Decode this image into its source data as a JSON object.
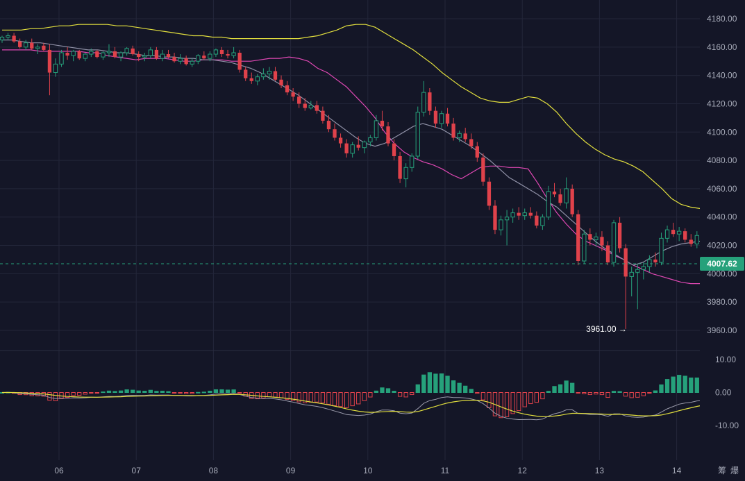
{
  "chart_data": {
    "type": "candlestick",
    "price_axis": {
      "ticks": [
        "4180.00",
        "4160.00",
        "4140.00",
        "4120.00",
        "4100.00",
        "4080.00",
        "4060.00",
        "4040.00",
        "4020.00",
        "4000.00",
        "3980.00",
        "3960.00"
      ],
      "ylim": [
        3955,
        4185
      ]
    },
    "current_price": {
      "label": "4007.62",
      "value": 4007.62,
      "color": "#26a17b"
    },
    "low_annotation": {
      "label": "3961.00 →",
      "value": 3961.0
    },
    "date_labels": [
      "06",
      "07",
      "08",
      "09",
      "10",
      "11",
      "12",
      "13",
      "14"
    ],
    "corner_labels": [
      "筹",
      "爆"
    ],
    "indicator_axis": {
      "ticks": [
        "10.00",
        "0.00",
        "-10.00"
      ],
      "ylim": [
        -20,
        12
      ]
    },
    "colors": {
      "up": "#26a17b",
      "down": "#e0424b",
      "ma_upper": "#e2df3e",
      "ma_lower": "#e048b4",
      "ma_mid": "#8f90a6",
      "signal": "#e2df3e",
      "macd": "#9a9aaa"
    },
    "candles_ohlc_per_day": 13,
    "candles": [
      [
        4165,
        4168,
        4163,
        4167
      ],
      [
        4167,
        4170,
        4165,
        4168
      ],
      [
        4168,
        4170,
        4163,
        4164
      ],
      [
        4164,
        4166,
        4159,
        4160
      ],
      [
        4160,
        4165,
        4158,
        4163
      ],
      [
        4163,
        4166,
        4158,
        4159
      ],
      [
        4159,
        4162,
        4155,
        4160
      ],
      [
        4161,
        4163,
        4157,
        4158
      ],
      [
        4158,
        4162,
        4126,
        4142
      ],
      [
        4142,
        4152,
        4139,
        4148
      ],
      [
        4148,
        4158,
        4146,
        4156
      ],
      [
        4156,
        4160,
        4151,
        4154
      ],
      [
        4154,
        4158,
        4150,
        4157
      ],
      [
        4157,
        4158,
        4151,
        4152
      ],
      [
        4152,
        4156,
        4150,
        4155
      ],
      [
        4155,
        4159,
        4153,
        4157
      ],
      [
        4157,
        4158,
        4152,
        4153
      ],
      [
        4153,
        4157,
        4151,
        4156
      ],
      [
        4156,
        4162,
        4153,
        4157
      ],
      [
        4157,
        4160,
        4152,
        4153
      ],
      [
        4153,
        4157,
        4150,
        4156
      ],
      [
        4156,
        4160,
        4154,
        4159
      ],
      [
        4159,
        4161,
        4154,
        4155
      ],
      [
        4155,
        4157,
        4150,
        4153
      ],
      [
        4153,
        4156,
        4150,
        4154
      ],
      [
        4154,
        4160,
        4152,
        4158
      ],
      [
        4158,
        4160,
        4151,
        4152
      ],
      [
        4152,
        4158,
        4150,
        4155
      ],
      [
        4155,
        4158,
        4152,
        4153
      ],
      [
        4153,
        4156,
        4149,
        4150
      ],
      [
        4150,
        4155,
        4148,
        4152
      ],
      [
        4152,
        4154,
        4147,
        4148
      ],
      [
        4148,
        4152,
        4146,
        4150
      ],
      [
        4150,
        4155,
        4148,
        4154
      ],
      [
        4154,
        4157,
        4151,
        4152
      ],
      [
        4152,
        4157,
        4150,
        4155
      ],
      [
        4155,
        4159,
        4153,
        4158
      ],
      [
        4158,
        4160,
        4153,
        4155
      ],
      [
        4155,
        4158,
        4152,
        4154
      ],
      [
        4154,
        4160,
        4152,
        4156
      ],
      [
        4156,
        4158,
        4142,
        4144
      ],
      [
        4144,
        4146,
        4136,
        4138
      ],
      [
        4138,
        4142,
        4134,
        4136
      ],
      [
        4136,
        4141,
        4133,
        4139
      ],
      [
        4139,
        4145,
        4137,
        4141
      ],
      [
        4141,
        4146,
        4137,
        4143
      ],
      [
        4143,
        4146,
        4136,
        4137
      ],
      [
        4137,
        4140,
        4131,
        4133
      ],
      [
        4133,
        4136,
        4126,
        4128
      ],
      [
        4128,
        4131,
        4122,
        4125
      ],
      [
        4125,
        4128,
        4117,
        4120
      ],
      [
        4120,
        4124,
        4115,
        4117
      ],
      [
        4117,
        4122,
        4116,
        4119
      ],
      [
        4119,
        4122,
        4113,
        4115
      ],
      [
        4115,
        4118,
        4106,
        4108
      ],
      [
        4108,
        4112,
        4100,
        4102
      ],
      [
        4102,
        4106,
        4094,
        4096
      ],
      [
        4096,
        4099,
        4089,
        4092
      ],
      [
        4092,
        4095,
        4082,
        4085
      ],
      [
        4085,
        4093,
        4082,
        4091
      ],
      [
        4091,
        4097,
        4087,
        4089
      ],
      [
        4089,
        4094,
        4085,
        4093
      ],
      [
        4093,
        4098,
        4090,
        4096
      ],
      [
        4096,
        4112,
        4094,
        4108
      ],
      [
        4108,
        4115,
        4101,
        4104
      ],
      [
        4104,
        4107,
        4090,
        4092
      ],
      [
        4092,
        4095,
        4080,
        4083
      ],
      [
        4083,
        4086,
        4064,
        4067
      ],
      [
        4067,
        4078,
        4061,
        4075
      ],
      [
        4075,
        4085,
        4072,
        4083
      ],
      [
        4083,
        4118,
        4081,
        4114
      ],
      [
        4114,
        4136,
        4111,
        4128
      ],
      [
        4128,
        4131,
        4112,
        4115
      ],
      [
        4115,
        4118,
        4103,
        4106
      ],
      [
        4106,
        4115,
        4103,
        4113
      ],
      [
        4113,
        4117,
        4104,
        4106
      ],
      [
        4106,
        4110,
        4094,
        4096
      ],
      [
        4096,
        4101,
        4093,
        4099
      ],
      [
        4099,
        4103,
        4093,
        4095
      ],
      [
        4095,
        4099,
        4088,
        4090
      ],
      [
        4090,
        4093,
        4079,
        4082
      ],
      [
        4082,
        4085,
        4062,
        4065
      ],
      [
        4065,
        4068,
        4045,
        4048
      ],
      [
        4048,
        4052,
        4028,
        4031
      ],
      [
        4031,
        4041,
        4027,
        4038
      ],
      [
        4038,
        4045,
        4020,
        4040
      ],
      [
        4040,
        4046,
        4036,
        4043
      ],
      [
        4043,
        4047,
        4038,
        4041
      ],
      [
        4041,
        4046,
        4038,
        4043
      ],
      [
        4043,
        4047,
        4039,
        4041
      ],
      [
        4041,
        4044,
        4032,
        4034
      ],
      [
        4034,
        4042,
        4031,
        4040
      ],
      [
        4040,
        4062,
        4038,
        4058
      ],
      [
        4058,
        4064,
        4054,
        4056
      ],
      [
        4056,
        4060,
        4048,
        4050
      ],
      [
        4050,
        4068,
        4046,
        4060
      ],
      [
        4060,
        4063,
        4040,
        4042
      ],
      [
        4042,
        4045,
        4006,
        4009
      ],
      [
        4009,
        4031,
        4007,
        4028
      ],
      [
        4028,
        4032,
        4020,
        4024
      ],
      [
        4024,
        4029,
        4019,
        4026
      ],
      [
        4026,
        4030,
        4016,
        4020
      ],
      [
        4020,
        4023,
        4006,
        4008
      ],
      [
        4008,
        4038,
        4005,
        4036
      ],
      [
        4036,
        4040,
        4015,
        4018
      ],
      [
        4018,
        4021,
        3961,
        3998
      ],
      [
        3998,
        4005,
        3984,
        4001
      ],
      [
        4001,
        4007,
        3975,
        4003
      ],
      [
        4003,
        4008,
        3996,
        4005
      ],
      [
        4005,
        4013,
        4001,
        4010
      ],
      [
        4010,
        4015,
        4005,
        4008
      ],
      [
        4008,
        4029,
        4006,
        4025
      ],
      [
        4025,
        4034,
        4022,
        4031
      ],
      [
        4031,
        4036,
        4026,
        4028
      ],
      [
        4028,
        4033,
        4023,
        4030
      ],
      [
        4030,
        4032,
        4022,
        4024
      ],
      [
        4024,
        4028,
        4019,
        4021
      ],
      [
        4021,
        4030,
        4018,
        4027
      ],
      [
        4027,
        4030,
        4018,
        4019
      ],
      [
        4019,
        4027,
        4016,
        4024
      ],
      [
        4024,
        4028,
        4016,
        4018
      ],
      [
        4018,
        4023,
        4010,
        4012
      ],
      [
        4012,
        4017,
        4003,
        4005
      ],
      [
        4005,
        4011,
        4001,
        4003
      ],
      [
        4003,
        4010,
        3997,
        4007.62
      ]
    ],
    "band_upper": [
      4172,
      4172,
      4172,
      4173,
      4173,
      4174,
      4175,
      4175,
      4176,
      4176,
      4176,
      4176,
      4175,
      4175,
      4174,
      4173,
      4172,
      4171,
      4170,
      4169,
      4168,
      4168,
      4167,
      4167,
      4166,
      4166,
      4166,
      4166,
      4166,
      4166,
      4166,
      4166,
      4167,
      4168,
      4170,
      4172,
      4175,
      4176,
      4176,
      4174,
      4170,
      4166,
      4162,
      4158,
      4153,
      4148,
      4142,
      4137,
      4132,
      4128,
      4124,
      4122,
      4121,
      4121,
      4123,
      4125,
      4124,
      4120,
      4114,
      4106,
      4099,
      4093,
      4088,
      4084,
      4081,
      4079,
      4076,
      4072,
      4066,
      4060,
      4053,
      4049,
      4047,
      4046,
      4045,
      4043,
      4041,
      4041
    ],
    "band_lower": [
      4158,
      4158,
      4158,
      4158,
      4157,
      4157,
      4157,
      4157,
      4157,
      4156,
      4156,
      4154,
      4153,
      4152,
      4151,
      4152,
      4152,
      4152,
      4151,
      4150,
      4150,
      4151,
      4151,
      4151,
      4150,
      4150,
      4150,
      4151,
      4152,
      4152,
      4153,
      4152,
      4150,
      4145,
      4142,
      4137,
      4132,
      4125,
      4118,
      4110,
      4100,
      4092,
      4086,
      4082,
      4079,
      4077,
      4074,
      4070,
      4067,
      4071,
      4075,
      4076,
      4076,
      4075,
      4075,
      4074,
      4064,
      4053,
      4043,
      4035,
      4028,
      4023,
      4020,
      4017,
      4013,
      4010,
      4006,
      4003,
      4000,
      3998,
      3996,
      3994,
      3993,
      3993,
      3994,
      3996,
      3998,
      3994
    ],
    "ma_mid": [
      4165,
      4165,
      4164,
      4163,
      4163,
      4162,
      4161,
      4160,
      4159,
      4158,
      4158,
      4157,
      4156,
      4156,
      4155,
      4154,
      4154,
      4153,
      4153,
      4152,
      4152,
      4151,
      4151,
      4150,
      4149,
      4147,
      4145,
      4142,
      4138,
      4134,
      4130,
      4126,
      4121,
      4116,
      4111,
      4106,
      4101,
      4096,
      4092,
      4090,
      4092,
      4096,
      4100,
      4104,
      4106,
      4104,
      4102,
      4098,
      4094,
      4090,
      4085,
      4080,
      4074,
      4068,
      4064,
      4060,
      4056,
      4051,
      4047,
      4041,
      4035,
      4029,
      4023,
      4018,
      4014,
      4010,
      4006,
      4008,
      4012,
      4016,
      4019,
      4021,
      4022,
      4023,
      4022,
      4021,
      4020,
      4015
    ]
  }
}
